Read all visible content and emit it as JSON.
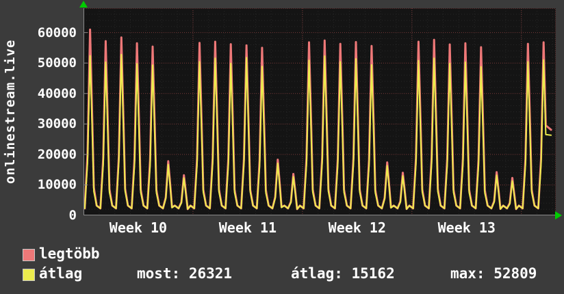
{
  "sidebar_title": "onlinestream.live",
  "legend": {
    "series1_label": "legtöbb",
    "series2_label": "átlag",
    "stat_most": "most: 26321",
    "stat_atlag": "átlag: 15162",
    "stat_max": "max: 52809"
  },
  "colors": {
    "background": "#3b3b3b",
    "plot_background": "#141414",
    "text": "#ffffff",
    "series_max": "#ee7878",
    "series_avg": "#ecec4d",
    "grid_major": "#7a3838",
    "grid_minor": "#272727",
    "axis": "#8a8a8a",
    "arrow": "#00cc00"
  },
  "chart_data": {
    "type": "line",
    "title": "onlinestream.live",
    "y_ticks": [
      0,
      10000,
      20000,
      30000,
      40000,
      50000,
      60000
    ],
    "ylim": [
      0,
      68000
    ],
    "x_end_day": 30.2,
    "week_gridline_days": [
      7,
      14,
      21,
      28
    ],
    "x_week_labels": [
      {
        "label": "Week 10",
        "center_day": 3.5
      },
      {
        "label": "Week 11",
        "center_day": 10.5
      },
      {
        "label": "Week 12",
        "center_day": 17.5
      },
      {
        "label": "Week 13",
        "center_day": 24.5
      }
    ],
    "trough": 2300,
    "grid": true,
    "legend_position": "bottom-left",
    "series": [
      {
        "name": "legtöbb",
        "color": "#ee7878",
        "stroke_width": 3,
        "end_value": 28100,
        "daily_peaks": [
          61000,
          57200,
          58400,
          56500,
          55400,
          17800,
          13200,
          56600,
          57000,
          56200,
          55800,
          55000,
          18300,
          13600,
          56800,
          57400,
          56300,
          56900,
          55600,
          17400,
          14000,
          57000,
          57600,
          56100,
          56500,
          55200,
          14200,
          12300,
          56300,
          56800
        ]
      },
      {
        "name": "átlag",
        "color": "#ecec4d",
        "stroke_width": 2,
        "end_value": 26321,
        "daily_peaks": [
          52400,
          50300,
          52809,
          49800,
          49300,
          16700,
          12300,
          50400,
          51600,
          49900,
          51800,
          48900,
          17100,
          12700,
          50900,
          52300,
          50400,
          51400,
          49400,
          16300,
          13000,
          50800,
          51600,
          49900,
          50300,
          48800,
          13200,
          11300,
          50400,
          51000
        ]
      }
    ],
    "stats": {
      "most": 26321,
      "atlag": 15162,
      "max": 52809
    }
  }
}
